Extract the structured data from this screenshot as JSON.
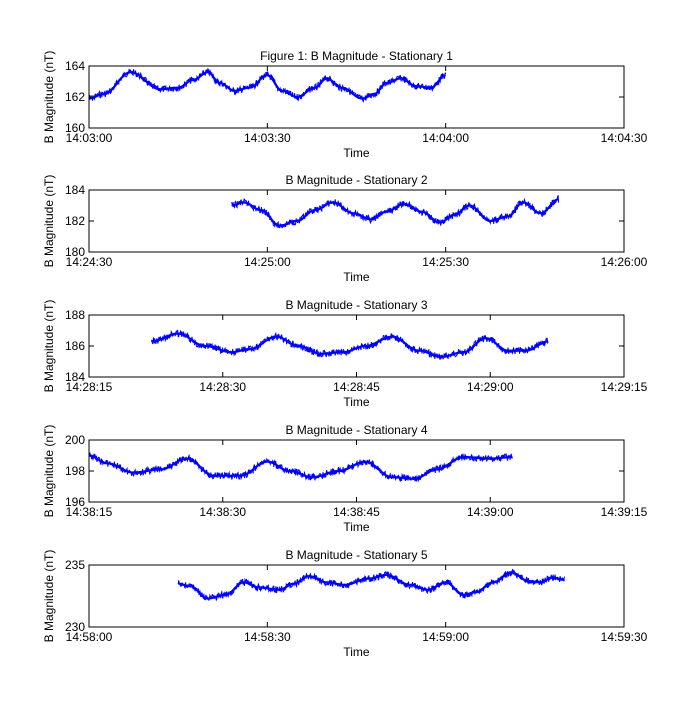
{
  "chart_data": [
    {
      "type": "line",
      "title": "Figure 1: B Magnitude - Stationary 1",
      "xlabel": "Time",
      "ylabel": "B Magnitude (nT)",
      "grid": false,
      "legend": "none",
      "xlim": [
        0,
        90
      ],
      "ylim": [
        160,
        164
      ],
      "xticks": [
        0,
        30,
        60,
        90
      ],
      "xtick_labels": [
        "14:03:00",
        "14:03:30",
        "14:04:00",
        "14:04:30"
      ],
      "yticks": [
        160,
        162,
        164
      ],
      "ytick_labels": [
        "160",
        "162",
        "164"
      ],
      "series": [
        {
          "color": "#0000ff",
          "x": [
            0,
            2.5,
            7,
            12,
            15,
            17.5,
            20,
            22,
            24.5,
            27,
            30,
            32.5,
            35,
            38,
            40,
            42.5,
            46,
            48,
            50,
            52.5,
            55,
            57.5,
            60
          ],
          "values": [
            161.9,
            162.2,
            163.6,
            162.5,
            162.6,
            163.1,
            163.6,
            162.9,
            162.4,
            162.6,
            163.4,
            162.4,
            162.0,
            162.6,
            163.2,
            162.6,
            161.9,
            162.2,
            162.9,
            163.2,
            162.7,
            162.6,
            163.4
          ]
        }
      ]
    },
    {
      "type": "line",
      "title": "B Magnitude - Stationary 2",
      "xlabel": "Time",
      "ylabel": "B Magnitude (nT)",
      "grid": false,
      "legend": "none",
      "xlim": [
        0,
        90
      ],
      "ylim": [
        180,
        184
      ],
      "xticks": [
        0,
        30,
        60,
        90
      ],
      "xtick_labels": [
        "14:24:30",
        "14:25:00",
        "14:25:30",
        "14:26:00"
      ],
      "yticks": [
        180,
        182,
        184
      ],
      "ytick_labels": [
        "180",
        "182",
        "184"
      ],
      "series": [
        {
          "color": "#0000ff",
          "x": [
            24,
            26,
            29,
            32,
            35,
            38,
            41,
            44.5,
            47.5,
            50,
            53,
            56,
            59,
            61.5,
            64,
            67.5,
            70.5,
            73,
            76,
            79
          ],
          "values": [
            183.0,
            183.2,
            182.7,
            181.7,
            182.0,
            182.7,
            183.2,
            182.5,
            182.1,
            182.6,
            183.1,
            182.6,
            181.9,
            182.4,
            183.0,
            182.0,
            182.3,
            183.2,
            182.5,
            183.4
          ]
        }
      ]
    },
    {
      "type": "line",
      "title": "B Magnitude - Stationary 3",
      "xlabel": "Time",
      "ylabel": "B Magnitude (nT)",
      "grid": false,
      "legend": "none",
      "xlim": [
        0,
        60
      ],
      "ylim": [
        184,
        188
      ],
      "xticks": [
        0,
        15,
        30,
        45,
        60
      ],
      "xtick_labels": [
        "14:28:15",
        "14:28:30",
        "14:28:45",
        "14:29:00",
        "14:29:15"
      ],
      "yticks": [
        184,
        186,
        188
      ],
      "ytick_labels": [
        "184",
        "186",
        "188"
      ],
      "series": [
        {
          "color": "#0000ff",
          "x": [
            7,
            10,
            13,
            16,
            18,
            21,
            23.5,
            26,
            28.5,
            31,
            34,
            37,
            39.5,
            42,
            44.5,
            47,
            49,
            51.5
          ],
          "values": [
            186.3,
            186.8,
            186.0,
            185.6,
            185.8,
            186.6,
            186.0,
            185.5,
            185.6,
            186.0,
            186.6,
            185.7,
            185.3,
            185.6,
            186.5,
            185.7,
            185.7,
            186.3
          ]
        }
      ]
    },
    {
      "type": "line",
      "title": "B Magnitude - Stationary 4",
      "xlabel": "Time",
      "ylabel": "B Magnitude (nT)",
      "grid": false,
      "legend": "none",
      "xlim": [
        0,
        60
      ],
      "ylim": [
        196,
        200
      ],
      "xticks": [
        0,
        15,
        30,
        45,
        60
      ],
      "xtick_labels": [
        "14:38:15",
        "14:38:30",
        "14:38:45",
        "14:39:00",
        "14:39:15"
      ],
      "yticks": [
        196,
        198,
        200
      ],
      "ytick_labels": [
        "196",
        "198",
        "200"
      ],
      "series": [
        {
          "color": "#0000ff",
          "x": [
            0,
            2,
            5,
            8,
            11,
            14,
            17,
            20,
            22.5,
            25,
            28,
            31,
            34,
            36.5,
            39,
            42,
            45,
            47.5
          ],
          "values": [
            199.0,
            198.5,
            197.9,
            198.1,
            198.8,
            197.7,
            197.7,
            198.6,
            198.0,
            197.6,
            198.0,
            198.6,
            197.6,
            197.5,
            198.1,
            198.9,
            198.8,
            198.9
          ]
        }
      ]
    },
    {
      "type": "line",
      "title": "B Magnitude - Stationary 5",
      "xlabel": "Time",
      "ylabel": "B Magnitude (nT)",
      "grid": false,
      "legend": "none",
      "xlim": [
        0,
        90
      ],
      "ylim": [
        230,
        235
      ],
      "xticks": [
        0,
        30,
        60,
        90
      ],
      "xtick_labels": [
        "14:58:00",
        "14:58:30",
        "14:59:00",
        "14:59:30"
      ],
      "yticks": [
        230,
        235
      ],
      "ytick_labels": [
        "230",
        "235"
      ],
      "series": [
        {
          "color": "#0000ff",
          "x": [
            15,
            17,
            20,
            23,
            26,
            28.5,
            32,
            34.5,
            37,
            40,
            43,
            47,
            50,
            54,
            57,
            60,
            63,
            65,
            68,
            71,
            74,
            76,
            78,
            80
          ],
          "values": [
            233.5,
            233.3,
            232.3,
            232.6,
            233.6,
            233.2,
            233.0,
            233.5,
            234.1,
            233.6,
            233.4,
            233.9,
            234.2,
            233.4,
            233.0,
            233.6,
            232.6,
            232.8,
            233.6,
            234.4,
            233.7,
            233.6,
            234.0,
            233.8
          ]
        }
      ]
    }
  ]
}
